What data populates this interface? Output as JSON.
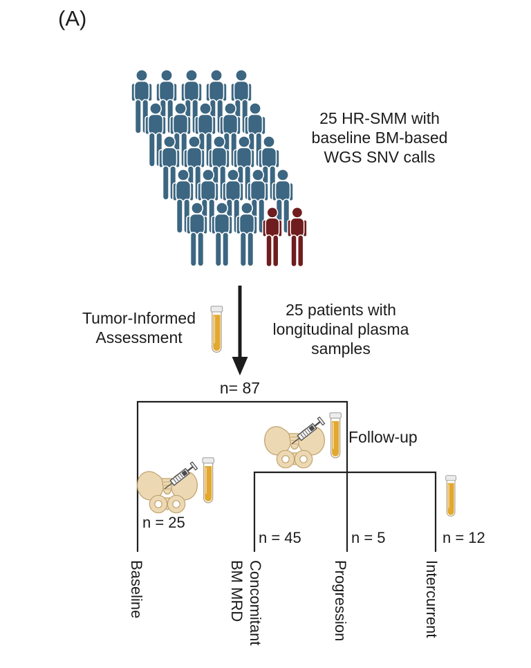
{
  "panel_label": "(A)",
  "figure": {
    "cohort_text": "25 HR-SMM with\nbaseline BM-based\nWGS SNV calls",
    "assessment_text": "Tumor-Informed\nAssessment",
    "plasma_text": "25 patients with\nlongitudinal plasma\nsamples"
  },
  "crowd": {
    "rows": 5,
    "cols": 5,
    "total": 25,
    "highlighted": 2,
    "person_color": "#3c6681",
    "highlight_color": "#6f1d1e"
  },
  "tree": {
    "root_n": "n= 87",
    "followup_label": "Follow-up",
    "branches": [
      {
        "label": "Baseline",
        "n": "n = 25"
      },
      {
        "label": "Concomitant\nBM MRD",
        "n": "n = 45"
      },
      {
        "label": "Progression",
        "n": "n = 5"
      },
      {
        "label": "Intercurrent",
        "n": "n = 12"
      }
    ]
  },
  "icons": {
    "person": "person-icon",
    "person_highlighted": "person-icon-highlighted",
    "test_tube": "test-tube-icon",
    "bm_sample": "pelvis-syringe-tube-icon",
    "arrow": "down-arrow-icon"
  },
  "colors": {
    "person": "#3c6681",
    "person_highlight": "#6f1d1e",
    "tube_fill": "#e3a82f",
    "tube_cap": "#ececec",
    "bone": "#ecd9b4",
    "bone_outline": "#c3a26e",
    "line": "#1f1f1f",
    "text": "#1b1b1b",
    "background": "#ffffff"
  }
}
